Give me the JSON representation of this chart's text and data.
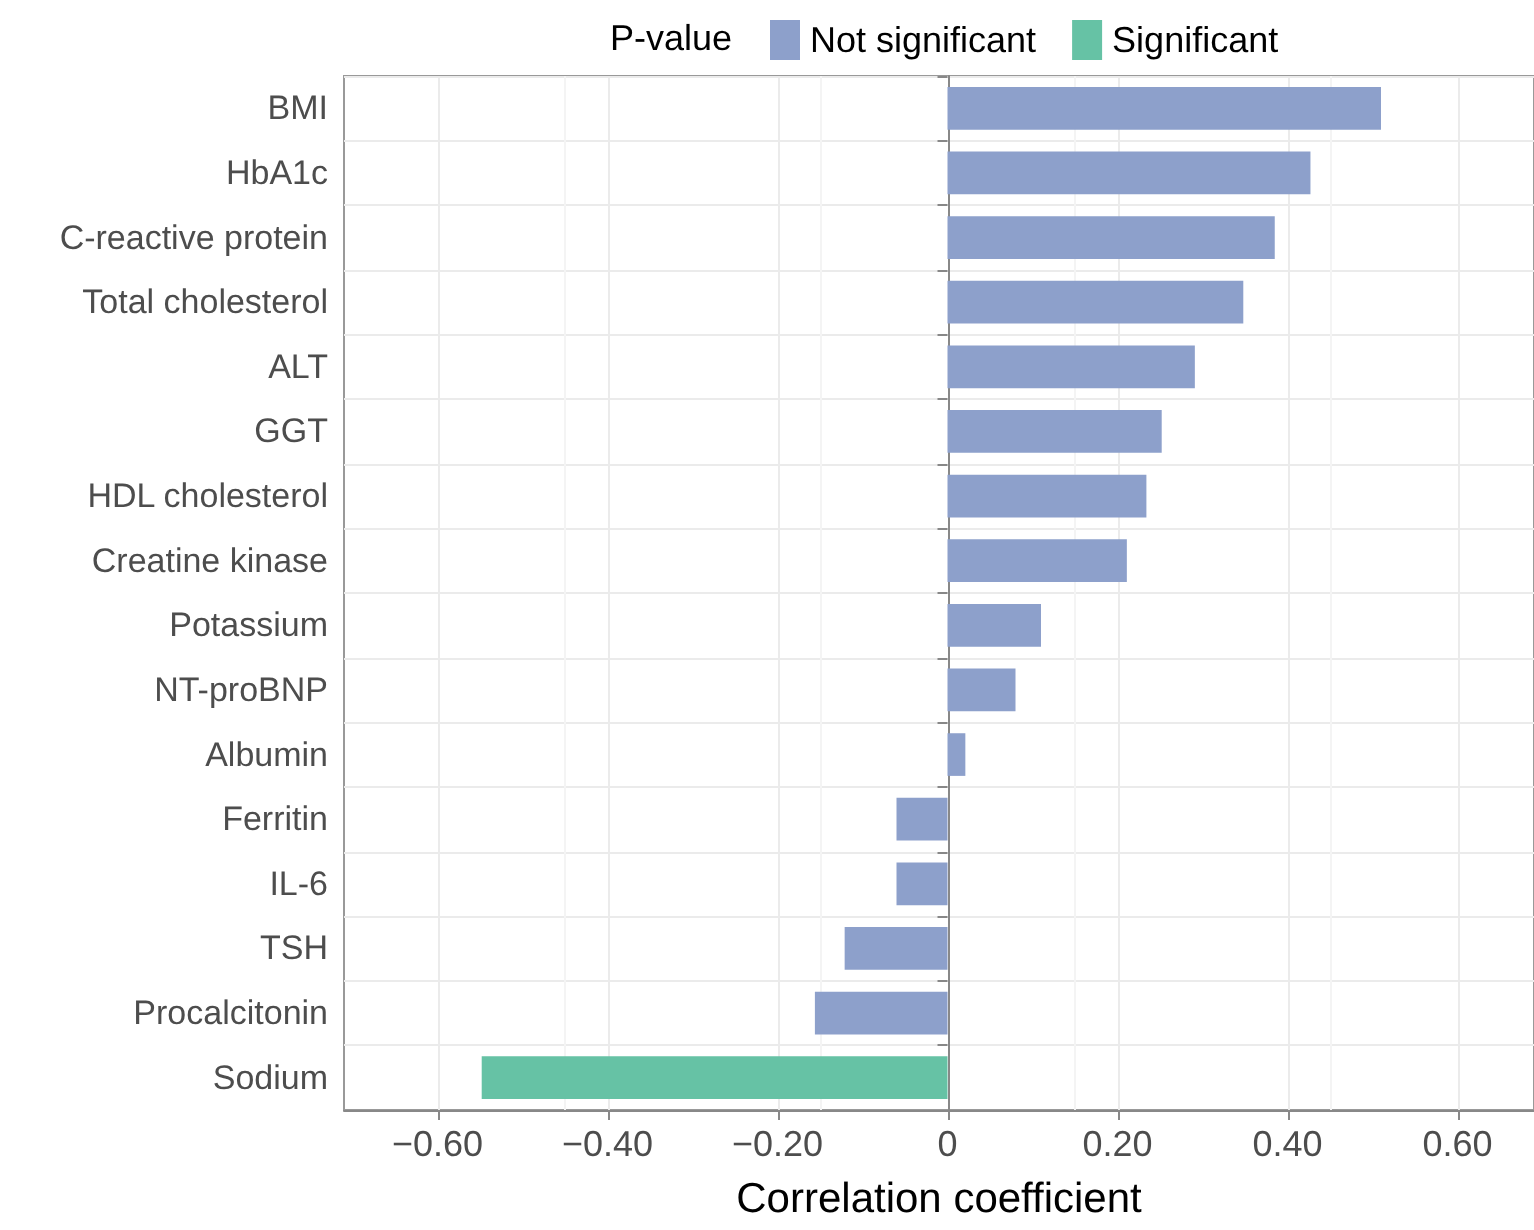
{
  "chart_data": {
    "type": "bar",
    "orientation": "horizontal",
    "xlabel": "Correlation coefficient",
    "legend_title": "P-value",
    "legend": "top",
    "categories": [
      "BMI",
      "HbA1c",
      "C-reactive protein",
      "Total cholesterol",
      "ALT",
      "GGT",
      "HDL cholesterol",
      "Creatine kinase",
      "Potassium",
      "NT-proBNP",
      "Albumin",
      "Ferritin",
      "IL-6",
      "TSH",
      "Procalcitonin",
      "Sodium"
    ],
    "series": [
      {
        "name": "Not significant",
        "color": "#8da0cb",
        "values": [
          0.51,
          0.427,
          0.385,
          0.348,
          0.291,
          0.252,
          0.234,
          0.211,
          0.11,
          0.08,
          0.021,
          -0.06,
          -0.06,
          -0.121,
          -0.156,
          null
        ]
      },
      {
        "name": "Significant",
        "color": "#66c2a5",
        "values": [
          null,
          null,
          null,
          null,
          null,
          null,
          null,
          null,
          null,
          null,
          null,
          null,
          null,
          null,
          null,
          -0.548
        ]
      }
    ],
    "xlim": [
      -0.71,
      0.69
    ],
    "xticks": [
      {
        "value": -0.6,
        "label": "−0.60"
      },
      {
        "value": -0.4,
        "label": "−0.40"
      },
      {
        "value": -0.2,
        "label": "−0.20"
      },
      0,
      {
        "value": 0.2,
        "label": "0.20"
      },
      {
        "value": 0.4,
        "label": "0.40"
      },
      {
        "value": 0.6,
        "label": "0.60"
      }
    ],
    "grid": true
  }
}
